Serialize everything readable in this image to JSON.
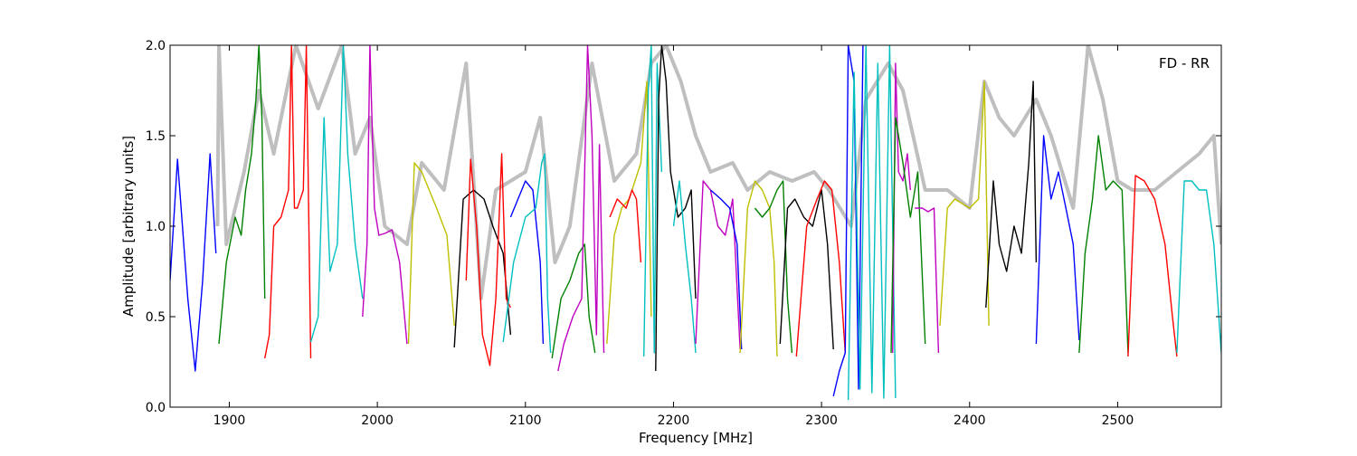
{
  "chart_data": {
    "type": "line",
    "title": "",
    "annotation": "FD - RR",
    "xlabel": "Frequency [MHz]",
    "ylabel": "Amplitude [arbitrary units]",
    "xlim": [
      1860,
      2570
    ],
    "ylim": [
      0.0,
      2.0
    ],
    "xticks": [
      1900,
      2000,
      2100,
      2200,
      2300,
      2400,
      2500
    ],
    "yticks": [
      0.0,
      0.5,
      1.0,
      1.5,
      2.0
    ],
    "grid": false,
    "background_trace_color": "#bfbfbf",
    "series_colors": [
      "#0000ff",
      "#008000",
      "#ff0000",
      "#00bfbf",
      "#bf00bf",
      "#bfbf00",
      "#000000"
    ],
    "series": [
      {
        "color": "#0000ff",
        "x": [
          1860,
          1865,
          1872,
          1877,
          1882,
          1887,
          1891
        ],
        "y": [
          0.7,
          1.37,
          0.6,
          0.2,
          0.7,
          1.4,
          0.85
        ]
      },
      {
        "color": "#008000",
        "x": [
          1893,
          1898,
          1904,
          1908,
          1911,
          1915,
          1918,
          1920,
          1922,
          1924
        ],
        "y": [
          0.35,
          0.8,
          1.05,
          0.95,
          1.2,
          1.4,
          1.7,
          2.0,
          1.6,
          0.6
        ]
      },
      {
        "color": "#ff0000",
        "x": [
          1924,
          1927,
          1930,
          1935,
          1940,
          1942,
          1944,
          1946,
          1950,
          1952,
          1955
        ],
        "y": [
          0.27,
          0.4,
          1.0,
          1.05,
          1.2,
          2.0,
          1.1,
          1.1,
          1.2,
          2.0,
          0.27
        ]
      },
      {
        "color": "#00bfbf",
        "x": [
          1955,
          1960,
          1964,
          1968,
          1973,
          1976,
          1977,
          1980,
          1985,
          1990
        ],
        "y": [
          0.36,
          0.5,
          1.6,
          0.75,
          0.9,
          1.7,
          2.0,
          1.4,
          0.9,
          0.6
        ]
      },
      {
        "color": "#bf00bf",
        "x": [
          1990,
          1993,
          1995,
          1998,
          2001,
          2005,
          2010,
          2015,
          2020
        ],
        "y": [
          0.5,
          0.9,
          2.0,
          1.1,
          0.95,
          0.96,
          0.98,
          0.8,
          0.35
        ]
      },
      {
        "color": "#bfbf00",
        "x": [
          2021,
          2025,
          2030,
          2040,
          2047,
          2052
        ],
        "y": [
          0.35,
          1.35,
          1.3,
          1.1,
          0.95,
          0.45
        ]
      },
      {
        "color": "#000000",
        "x": [
          2052,
          2058,
          2065,
          2072,
          2078,
          2085,
          2090
        ],
        "y": [
          0.33,
          1.15,
          1.2,
          1.15,
          1.0,
          0.85,
          0.4
        ]
      },
      {
        "color": "#ff0000",
        "x": [
          2060,
          2063,
          2067,
          2071,
          2076,
          2080,
          2084,
          2087,
          2090
        ],
        "y": [
          0.7,
          1.37,
          1.0,
          0.4,
          0.23,
          0.6,
          1.4,
          0.6,
          0.55
        ]
      },
      {
        "color": "#0000ff",
        "x": [
          2090,
          2095,
          2100,
          2105,
          2110,
          2112
        ],
        "y": [
          1.05,
          1.15,
          1.25,
          1.2,
          0.8,
          0.35
        ]
      },
      {
        "color": "#00bfbf",
        "x": [
          2085,
          2092,
          2100,
          2107,
          2111,
          2113,
          2115,
          2117
        ],
        "y": [
          0.36,
          0.8,
          1.05,
          1.1,
          1.35,
          1.4,
          0.6,
          0.3
        ]
      },
      {
        "color": "#008000",
        "x": [
          2118,
          2124,
          2130,
          2136,
          2140,
          2143,
          2147
        ],
        "y": [
          0.27,
          0.6,
          0.7,
          0.85,
          0.9,
          0.5,
          0.3
        ]
      },
      {
        "color": "#bf00bf",
        "x": [
          2122,
          2126,
          2132,
          2138,
          2142,
          2145,
          2148,
          2150,
          2153
        ],
        "y": [
          0.2,
          0.35,
          0.5,
          0.6,
          2.0,
          1.5,
          0.4,
          1.45,
          0.3
        ]
      },
      {
        "color": "#bfbf00",
        "x": [
          2155,
          2160,
          2165,
          2170,
          2178,
          2182,
          2185
        ],
        "y": [
          0.35,
          0.95,
          1.1,
          1.15,
          1.35,
          1.8,
          0.5
        ]
      },
      {
        "color": "#ff0000",
        "x": [
          2157,
          2162,
          2168,
          2172,
          2175,
          2178
        ],
        "y": [
          1.05,
          1.15,
          1.1,
          1.2,
          1.15,
          0.8
        ]
      },
      {
        "color": "#00bfbf",
        "x": [
          2180,
          2183,
          2185,
          2187,
          2189,
          2192
        ],
        "y": [
          0.28,
          1.75,
          2.0,
          0.3,
          1.9,
          1.3
        ]
      },
      {
        "color": "#000000",
        "x": [
          2188,
          2190,
          2192,
          2195,
          2198,
          2203,
          2208,
          2212,
          2215
        ],
        "y": [
          0.2,
          1.7,
          2.0,
          1.8,
          1.3,
          1.05,
          1.1,
          1.2,
          0.6
        ]
      },
      {
        "color": "#00bfbf",
        "x": [
          2200,
          2204,
          2208,
          2212,
          2215
        ],
        "y": [
          1.0,
          1.25,
          0.9,
          0.6,
          0.3
        ]
      },
      {
        "color": "#bf00bf",
        "x": [
          2215,
          2220,
          2225,
          2230,
          2235,
          2240,
          2245
        ],
        "y": [
          0.35,
          1.25,
          1.2,
          1.0,
          0.95,
          1.15,
          0.32
        ]
      },
      {
        "color": "#0000ff",
        "x": [
          2225,
          2232,
          2238,
          2243,
          2246
        ],
        "y": [
          1.2,
          1.15,
          1.1,
          0.9,
          0.32
        ]
      },
      {
        "color": "#bfbf00",
        "x": [
          2245,
          2250,
          2255,
          2260,
          2265,
          2268,
          2270
        ],
        "y": [
          0.3,
          1.1,
          1.25,
          1.2,
          1.1,
          0.8,
          0.28
        ]
      },
      {
        "color": "#008000",
        "x": [
          2255,
          2260,
          2265,
          2270,
          2274,
          2277,
          2280
        ],
        "y": [
          1.1,
          1.05,
          1.1,
          1.2,
          1.25,
          0.6,
          0.3
        ]
      },
      {
        "color": "#000000",
        "x": [
          2272,
          2277,
          2282,
          2288,
          2294,
          2300,
          2304,
          2308
        ],
        "y": [
          0.35,
          1.1,
          1.15,
          1.05,
          1.0,
          1.2,
          0.9,
          0.32
        ]
      },
      {
        "color": "#ff0000",
        "x": [
          2283,
          2290,
          2297,
          2302,
          2307,
          2312,
          2316
        ],
        "y": [
          0.28,
          1.0,
          1.15,
          1.25,
          1.2,
          0.8,
          0.3
        ]
      },
      {
        "color": "#0000ff",
        "x": [
          2308,
          2312,
          2316,
          2318,
          2322,
          2325,
          2328
        ],
        "y": [
          0.06,
          0.2,
          0.3,
          2.0,
          1.8,
          0.1,
          2.0
        ]
      },
      {
        "color": "#00bfbf",
        "x": [
          2318,
          2322,
          2326,
          2330,
          2334,
          2338,
          2342,
          2346,
          2350
        ],
        "y": [
          0.04,
          1.85,
          0.1,
          2.0,
          0.08,
          1.9,
          0.05,
          2.0,
          0.05
        ]
      },
      {
        "color": "#bf00bf",
        "x": [
          2348,
          2350,
          2352,
          2355,
          2358,
          2360
        ],
        "y": [
          0.3,
          1.9,
          1.3,
          1.25,
          1.4,
          1.2
        ]
      },
      {
        "color": "#008000",
        "x": [
          2347,
          2350,
          2355,
          2360,
          2365,
          2370
        ],
        "y": [
          0.3,
          1.6,
          1.35,
          1.05,
          1.3,
          0.35
        ]
      },
      {
        "color": "#bf00bf",
        "x": [
          2363,
          2368,
          2372,
          2376,
          2379
        ],
        "y": [
          1.1,
          1.1,
          1.08,
          1.1,
          0.3
        ]
      },
      {
        "color": "#bfbf00",
        "x": [
          2380,
          2385,
          2390,
          2400,
          2406,
          2410,
          2413
        ],
        "y": [
          0.45,
          1.1,
          1.15,
          1.1,
          1.15,
          1.8,
          0.45
        ]
      },
      {
        "color": "#000000",
        "x": [
          2411,
          2416,
          2420,
          2425,
          2430,
          2435,
          2440,
          2443,
          2445
        ],
        "y": [
          0.55,
          1.25,
          0.9,
          0.75,
          1.0,
          0.85,
          1.35,
          1.8,
          0.8
        ]
      },
      {
        "color": "#0000ff",
        "x": [
          2445,
          2450,
          2455,
          2460,
          2465,
          2470,
          2474
        ],
        "y": [
          0.35,
          1.5,
          1.15,
          1.3,
          1.1,
          0.9,
          0.37
        ]
      },
      {
        "color": "#008000",
        "x": [
          2474,
          2478,
          2483,
          2487,
          2492,
          2497,
          2503,
          2507
        ],
        "y": [
          0.3,
          0.85,
          1.15,
          1.5,
          1.2,
          1.25,
          1.2,
          0.3
        ]
      },
      {
        "color": "#ff0000",
        "x": [
          2507,
          2512,
          2518,
          2525,
          2532,
          2537,
          2540
        ],
        "y": [
          0.28,
          1.28,
          1.25,
          1.15,
          0.9,
          0.5,
          0.28
        ]
      },
      {
        "color": "#00bfbf",
        "x": [
          2540,
          2545,
          2550,
          2555,
          2560,
          2565,
          2570
        ],
        "y": [
          0.3,
          1.25,
          1.25,
          1.2,
          1.2,
          0.9,
          0.3
        ]
      }
    ],
    "background_trace": {
      "x": [
        1892,
        1893,
        1898,
        1910,
        1920,
        1930,
        1945,
        1960,
        1976,
        1985,
        1995,
        2005,
        2020,
        2030,
        2045,
        2060,
        2070,
        2080,
        2100,
        2110,
        2120,
        2130,
        2145,
        2160,
        2175,
        2185,
        2195,
        2205,
        2215,
        2225,
        2240,
        2250,
        2265,
        2280,
        2295,
        2305,
        2320,
        2330,
        2345,
        2355,
        2370,
        2385,
        2400,
        2410,
        2420,
        2430,
        2445,
        2455,
        2470,
        2480,
        2490,
        2500,
        2510,
        2525,
        2540,
        2555,
        2565,
        2570
      ],
      "y": [
        1.0,
        2.0,
        0.9,
        1.3,
        1.75,
        1.4,
        2.0,
        1.65,
        2.0,
        1.4,
        1.6,
        1.0,
        0.9,
        1.35,
        1.2,
        1.9,
        0.6,
        1.2,
        1.3,
        1.6,
        0.8,
        1.0,
        1.9,
        1.25,
        1.4,
        1.9,
        2.0,
        1.8,
        1.5,
        1.3,
        1.35,
        1.2,
        1.3,
        1.25,
        1.3,
        1.2,
        1.0,
        1.7,
        1.9,
        1.75,
        1.2,
        1.2,
        1.1,
        1.8,
        1.6,
        1.5,
        1.7,
        1.5,
        1.1,
        2.0,
        1.7,
        1.25,
        1.2,
        1.2,
        1.3,
        1.4,
        1.5,
        0.9
      ]
    }
  }
}
